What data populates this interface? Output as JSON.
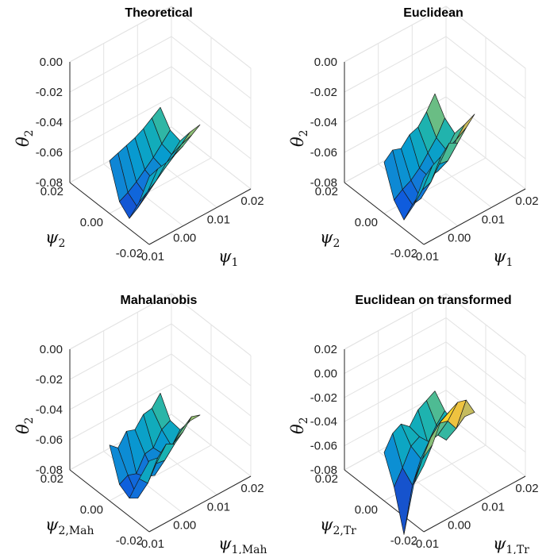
{
  "chart_data": [
    {
      "type": "surface",
      "title": "Theoretical",
      "xlabel": "ψ",
      "xlabel_sub": "1",
      "ylabel": "ψ",
      "ylabel_sub": "2",
      "zlabel": "θ",
      "zlabel_sub": "2",
      "xticks": [
        "-0.01",
        "0.00",
        "0.01",
        "0.02"
      ],
      "yticks": [
        "-0.02",
        "0.00",
        "0.02"
      ],
      "zticks": [
        "0.00",
        "-0.02",
        "-0.04",
        "-0.06",
        "-0.08"
      ],
      "zlim": [
        -0.08,
        0.0
      ],
      "x_grid": [
        -0.01,
        -0.0075,
        -0.005,
        -0.0025,
        0.0,
        0.0025,
        0.005
      ],
      "y_grid": [
        -0.02,
        -0.015,
        -0.01,
        -0.005,
        0.0
      ],
      "z": [
        [
          -0.035,
          -0.033,
          -0.032,
          -0.03,
          -0.027,
          -0.023,
          -0.019
        ],
        [
          -0.057,
          -0.053,
          -0.049,
          -0.044,
          -0.039,
          -0.034,
          -0.029
        ],
        [
          -0.073,
          -0.069,
          -0.064,
          -0.058,
          -0.052,
          -0.046,
          -0.04
        ],
        [
          -0.067,
          -0.064,
          -0.06,
          -0.055,
          -0.05,
          -0.044,
          -0.038
        ],
        [
          -0.045,
          -0.043,
          -0.041,
          -0.039,
          -0.036,
          -0.032,
          -0.028
        ]
      ]
    },
    {
      "type": "surface",
      "title": "Euclidean",
      "xlabel": "ψ",
      "xlabel_sub": "1",
      "ylabel": "ψ",
      "ylabel_sub": "2",
      "zlabel": "θ",
      "zlabel_sub": "2",
      "xticks": [
        "-0.01",
        "0.00",
        "0.01",
        "0.02"
      ],
      "yticks": [
        "-0.02",
        "0.00",
        "0.02"
      ],
      "zticks": [
        "0.00",
        "-0.02",
        "-0.04",
        "-0.06",
        "-0.08"
      ],
      "zlim": [
        -0.08,
        0.0
      ],
      "x_grid": [
        -0.01,
        -0.0075,
        -0.005,
        -0.0025,
        0.0,
        0.0025,
        0.005
      ],
      "y_grid": [
        -0.02,
        -0.015,
        -0.01,
        -0.005,
        0.0
      ],
      "z": [
        [
          -0.036,
          -0.031,
          -0.028,
          -0.022,
          -0.025,
          -0.018,
          -0.012
        ],
        [
          -0.059,
          -0.052,
          -0.05,
          -0.041,
          -0.042,
          -0.031,
          -0.024
        ],
        [
          -0.074,
          -0.067,
          -0.066,
          -0.055,
          -0.054,
          -0.043,
          -0.035
        ],
        [
          -0.066,
          -0.062,
          -0.059,
          -0.054,
          -0.047,
          -0.04,
          -0.03
        ],
        [
          -0.046,
          -0.041,
          -0.043,
          -0.037,
          -0.035,
          -0.028,
          -0.019
        ]
      ]
    },
    {
      "type": "surface",
      "title": "Mahalanobis",
      "xlabel": "ψ",
      "xlabel_sub": "1,Mah",
      "ylabel": "ψ",
      "ylabel_sub": "2,Mah",
      "zlabel": "θ",
      "zlabel_sub": "2",
      "xticks": [
        "-0.01",
        "0.00",
        "0.01",
        "0.02"
      ],
      "yticks": [
        "-0.02",
        "0.00",
        "0.02"
      ],
      "zticks": [
        "0.00",
        "-0.02",
        "-0.04",
        "-0.06",
        "-0.08"
      ],
      "zlim": [
        -0.08,
        0.0
      ],
      "x_grid": [
        -0.01,
        -0.0075,
        -0.005,
        -0.0025,
        0.0,
        0.0025,
        0.005
      ],
      "y_grid": [
        -0.02,
        -0.015,
        -0.01,
        -0.005,
        0.0
      ],
      "z": [
        [
          -0.033,
          -0.034,
          -0.028,
          -0.031,
          -0.026,
          -0.019,
          -0.021
        ],
        [
          -0.05,
          -0.056,
          -0.046,
          -0.047,
          -0.039,
          -0.033,
          -0.03
        ],
        [
          -0.068,
          -0.071,
          -0.06,
          -0.062,
          -0.051,
          -0.049,
          -0.041
        ],
        [
          -0.064,
          -0.061,
          -0.063,
          -0.053,
          -0.052,
          -0.043,
          -0.04
        ],
        [
          -0.043,
          -0.048,
          -0.04,
          -0.042,
          -0.035,
          -0.034,
          -0.027
        ]
      ]
    },
    {
      "type": "surface",
      "title": "Euclidean on transformed",
      "xlabel": "ψ",
      "xlabel_sub": "1,Tr",
      "ylabel": "ψ",
      "ylabel_sub": "2,Tr",
      "zlabel": "θ",
      "zlabel_sub": "2",
      "xticks": [
        "-0.01",
        "0.00",
        "0.01",
        "0.02"
      ],
      "yticks": [
        "-0.02",
        "0.00",
        "0.02"
      ],
      "zticks": [
        "0.02",
        "0.00",
        "-0.02",
        "-0.04",
        "-0.06",
        "-0.08"
      ],
      "zlim": [
        -0.08,
        0.02
      ],
      "x_grid": [
        -0.01,
        -0.0075,
        -0.005,
        -0.0025,
        0.0,
        0.0025,
        0.005
      ],
      "y_grid": [
        -0.02,
        -0.015,
        -0.01,
        -0.005,
        0.0
      ],
      "z": [
        [
          -0.025,
          -0.012,
          0.004,
          0.008,
          0.012,
          0.01,
          -0.004
        ],
        [
          -0.047,
          -0.03,
          -0.016,
          -0.008,
          -0.01,
          -0.02,
          -0.014
        ],
        [
          -0.095,
          -0.058,
          -0.04,
          -0.03,
          -0.028,
          -0.036,
          -0.026
        ],
        [
          -0.062,
          -0.05,
          -0.036,
          -0.032,
          -0.041,
          -0.03,
          -0.022
        ],
        [
          -0.04,
          -0.028,
          -0.024,
          -0.03,
          -0.02,
          -0.016,
          -0.012
        ]
      ]
    }
  ]
}
